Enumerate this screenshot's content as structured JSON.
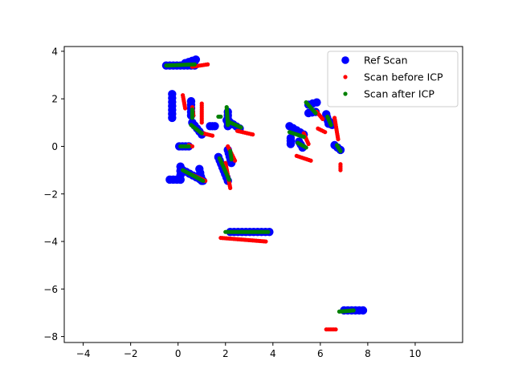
{
  "chart_data": {
    "type": "scatter",
    "title": "",
    "xlabel": "",
    "ylabel": "",
    "xlim": [
      -4.8,
      12.0
    ],
    "ylim": [
      -8.25,
      4.2
    ],
    "xticks": [
      -4,
      -2,
      0,
      2,
      4,
      6,
      8,
      10
    ],
    "yticks": [
      -8,
      -6,
      -4,
      -2,
      0,
      2,
      4
    ],
    "grid": false,
    "legend_position": "top-right",
    "series": [
      {
        "name": "Ref Scan",
        "color": "#0000ff",
        "marker": "large-circle",
        "segments": [
          [
            [
              -0.5,
              3.4
            ],
            [
              0.7,
              3.4
            ]
          ],
          [
            [
              0.3,
              3.5
            ],
            [
              0.75,
              3.65
            ]
          ],
          [
            [
              -0.25,
              2.2
            ],
            [
              -0.25,
              1.2
            ]
          ],
          [
            [
              0.55,
              1.9
            ],
            [
              0.55,
              1.3
            ]
          ],
          [
            [
              0.6,
              1.0
            ],
            [
              1.0,
              0.5
            ]
          ],
          [
            [
              1.35,
              0.85
            ],
            [
              1.55,
              0.85
            ]
          ],
          [
            [
              0.05,
              0.0
            ],
            [
              0.45,
              0.0
            ]
          ],
          [
            [
              -0.35,
              -1.4
            ],
            [
              0.1,
              -1.4
            ]
          ],
          [
            [
              0.1,
              -0.85
            ],
            [
              0.1,
              -1.4
            ]
          ],
          [
            [
              0.2,
              -1.0
            ],
            [
              1.05,
              -1.45
            ]
          ],
          [
            [
              0.9,
              -0.95
            ],
            [
              1.0,
              -1.45
            ]
          ],
          [
            [
              1.7,
              -0.45
            ],
            [
              2.1,
              -1.45
            ]
          ],
          [
            [
              2.1,
              -0.15
            ],
            [
              2.25,
              -0.7
            ]
          ],
          [
            [
              2.05,
              1.1
            ],
            [
              2.6,
              0.75
            ]
          ],
          [
            [
              2.1,
              1.45
            ],
            [
              2.1,
              0.85
            ]
          ],
          [
            [
              2.2,
              -3.6
            ],
            [
              3.85,
              -3.6
            ]
          ],
          [
            [
              4.7,
              0.85
            ],
            [
              5.3,
              0.5
            ]
          ],
          [
            [
              4.75,
              0.35
            ],
            [
              4.75,
              0.1
            ]
          ],
          [
            [
              5.1,
              0.2
            ],
            [
              5.25,
              -0.05
            ]
          ],
          [
            [
              5.5,
              1.75
            ],
            [
              5.85,
              1.85
            ]
          ],
          [
            [
              5.5,
              1.4
            ],
            [
              5.8,
              1.45
            ]
          ],
          [
            [
              6.25,
              1.35
            ],
            [
              6.35,
              0.95
            ]
          ],
          [
            [
              6.3,
              1.15
            ],
            [
              6.5,
              0.9
            ]
          ],
          [
            [
              6.6,
              0.05
            ],
            [
              6.85,
              -0.15
            ]
          ],
          [
            [
              7.0,
              -6.9
            ],
            [
              7.8,
              -6.9
            ]
          ]
        ]
      },
      {
        "name": "Scan before ICP",
        "color": "#ff0000",
        "marker": "small-dot",
        "segments": [
          [
            [
              0.6,
              3.35
            ],
            [
              1.25,
              3.45
            ]
          ],
          [
            [
              0.2,
              2.15
            ],
            [
              0.3,
              1.6
            ]
          ],
          [
            [
              0.6,
              1.65
            ],
            [
              0.65,
              1.3
            ]
          ],
          [
            [
              1.0,
              1.8
            ],
            [
              1.0,
              1.0
            ]
          ],
          [
            [
              1.05,
              0.55
            ],
            [
              1.45,
              0.45
            ]
          ],
          [
            [
              0.45,
              0.05
            ],
            [
              0.6,
              0.0
            ]
          ],
          [
            [
              0.6,
              -1.2
            ],
            [
              1.15,
              -1.45
            ]
          ],
          [
            [
              2.0,
              -0.7
            ],
            [
              2.2,
              -1.75
            ]
          ],
          [
            [
              2.5,
              0.65
            ],
            [
              3.15,
              0.5
            ]
          ],
          [
            [
              2.1,
              0.0
            ],
            [
              2.4,
              -0.6
            ]
          ],
          [
            [
              1.8,
              -3.85
            ],
            [
              3.7,
              -4.0
            ]
          ],
          [
            [
              5.0,
              -0.4
            ],
            [
              5.6,
              -0.6
            ]
          ],
          [
            [
              5.3,
              0.55
            ],
            [
              5.5,
              0.1
            ]
          ],
          [
            [
              5.85,
              1.45
            ],
            [
              6.1,
              1.15
            ]
          ],
          [
            [
              5.9,
              0.75
            ],
            [
              6.2,
              0.6
            ]
          ],
          [
            [
              6.6,
              1.2
            ],
            [
              6.75,
              0.3
            ]
          ],
          [
            [
              6.85,
              -0.75
            ],
            [
              6.85,
              -1.0
            ]
          ],
          [
            [
              6.25,
              -7.7
            ],
            [
              6.65,
              -7.7
            ]
          ]
        ]
      },
      {
        "name": "Scan after ICP",
        "color": "#008000",
        "marker": "small-dot",
        "segments": [
          [
            [
              -0.5,
              3.4
            ],
            [
              0.7,
              3.45
            ]
          ],
          [
            [
              0.6,
              1.55
            ],
            [
              0.6,
              1.2
            ]
          ],
          [
            [
              0.55,
              0.9
            ],
            [
              1.0,
              0.55
            ]
          ],
          [
            [
              0.1,
              0.0
            ],
            [
              0.45,
              0.0
            ]
          ],
          [
            [
              0.2,
              -1.0
            ],
            [
              1.05,
              -1.45
            ]
          ],
          [
            [
              1.75,
              -0.5
            ],
            [
              2.15,
              -1.4
            ]
          ],
          [
            [
              2.05,
              1.65
            ],
            [
              2.1,
              0.9
            ]
          ],
          [
            [
              1.7,
              1.25
            ],
            [
              1.8,
              1.25
            ]
          ],
          [
            [
              2.1,
              1.05
            ],
            [
              2.65,
              0.8
            ]
          ],
          [
            [
              2.2,
              -0.2
            ],
            [
              2.25,
              -0.55
            ]
          ],
          [
            [
              2.0,
              -3.6
            ],
            [
              3.8,
              -3.6
            ]
          ],
          [
            [
              4.7,
              0.6
            ],
            [
              5.3,
              0.4
            ]
          ],
          [
            [
              5.05,
              0.15
            ],
            [
              5.4,
              -0.05
            ]
          ],
          [
            [
              5.4,
              1.85
            ],
            [
              5.8,
              1.4
            ]
          ],
          [
            [
              6.3,
              1.25
            ],
            [
              6.45,
              0.9
            ]
          ],
          [
            [
              6.7,
              0.05
            ],
            [
              6.85,
              -0.2
            ]
          ],
          [
            [
              6.8,
              -6.95
            ],
            [
              7.4,
              -6.9
            ]
          ]
        ]
      }
    ]
  }
}
